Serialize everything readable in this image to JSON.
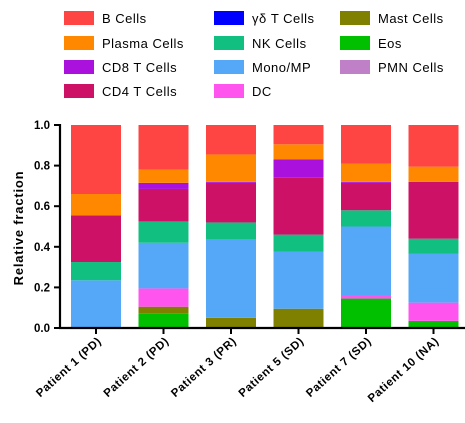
{
  "chart_data": {
    "type": "bar",
    "stacked": true,
    "title": "",
    "xlabel": "",
    "ylabel": "Relative fraction",
    "ylim": [
      0,
      1.0
    ],
    "yticks": [
      "0.0",
      "0.2",
      "0.4",
      "0.6",
      "0.8",
      "1.0"
    ],
    "grid": false,
    "legend_position": "top",
    "categories": [
      "Patient 1 (PD)",
      "Patient 2 (PD)",
      "Patient 3 (PR)",
      "Patient 5 (SD)",
      "Patient 7 (SD)",
      "Patient 10 (NA)"
    ],
    "series": [
      {
        "name": "Eos",
        "color": "#00c000",
        "values": [
          0.0,
          0.07,
          0.0,
          0.0,
          0.145,
          0.035
        ]
      },
      {
        "name": "Mast Cells",
        "color": "#808000",
        "values": [
          0.0,
          0.035,
          0.05,
          0.095,
          0.0,
          0.0
        ]
      },
      {
        "name": "DC",
        "color": "#ff55ee",
        "values": [
          0.0,
          0.09,
          0.0,
          0.0,
          0.015,
          0.09
        ]
      },
      {
        "name": "Mono/MP",
        "color": "#55a8f8",
        "values": [
          0.235,
          0.225,
          0.385,
          0.28,
          0.34,
          0.24
        ]
      },
      {
        "name": "NK Cells",
        "color": "#11c080",
        "values": [
          0.09,
          0.105,
          0.085,
          0.085,
          0.08,
          0.075
        ]
      },
      {
        "name": "CD4 T Cells",
        "color": "#cc1166",
        "values": [
          0.23,
          0.16,
          0.195,
          0.28,
          0.135,
          0.28
        ]
      },
      {
        "name": "PMN Cells",
        "color": "#c080c8",
        "values": [
          0.0,
          0.0,
          0.0,
          0.0,
          0.0,
          0.0
        ]
      },
      {
        "name": "CD8 T Cells",
        "color": "#aa11dd",
        "values": [
          0.0,
          0.03,
          0.005,
          0.09,
          0.005,
          0.0
        ]
      },
      {
        "name": "γδ T Cells",
        "color": "#0000ff",
        "values": [
          0.0,
          0.0,
          0.0,
          0.0,
          0.0,
          0.0
        ]
      },
      {
        "name": "Plasma Cells",
        "color": "#ff8800",
        "values": [
          0.105,
          0.065,
          0.135,
          0.075,
          0.09,
          0.075
        ]
      },
      {
        "name": "B Cells",
        "color": "#ff4444",
        "values": [
          0.34,
          0.22,
          0.145,
          0.095,
          0.19,
          0.205
        ]
      }
    ],
    "legend": [
      {
        "name": "B Cells",
        "color": "#ff4444"
      },
      {
        "name": "Plasma Cells",
        "color": "#ff8800"
      },
      {
        "name": "CD8 T Cells",
        "color": "#aa11dd"
      },
      {
        "name": "CD4 T Cells",
        "color": "#cc1166"
      },
      {
        "name": "γδ T Cells",
        "color": "#0000ff"
      },
      {
        "name": "NK Cells",
        "color": "#11c080"
      },
      {
        "name": "Mono/MP",
        "color": "#55a8f8"
      },
      {
        "name": "DC",
        "color": "#ff55ee"
      },
      {
        "name": "Mast Cells",
        "color": "#808000"
      },
      {
        "name": "Eos",
        "color": "#00c000"
      },
      {
        "name": "PMN Cells",
        "color": "#c080c8"
      }
    ]
  }
}
